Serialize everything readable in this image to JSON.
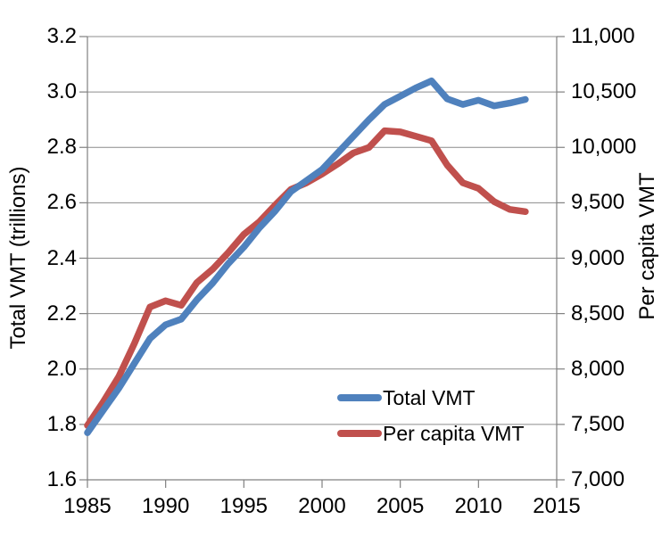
{
  "chart_data": {
    "type": "line",
    "x": [
      1985,
      1986,
      1987,
      1988,
      1989,
      1990,
      1991,
      1992,
      1993,
      1994,
      1995,
      1996,
      1997,
      1998,
      1999,
      2000,
      2001,
      2002,
      2003,
      2004,
      2005,
      2006,
      2007,
      2008,
      2009,
      2010,
      2011,
      2012,
      2013
    ],
    "series": [
      {
        "name": "Total VMT",
        "axis": "left",
        "color": "#4F81BD",
        "values": [
          1.77,
          1.85,
          1.93,
          2.02,
          2.11,
          2.16,
          2.18,
          2.25,
          2.31,
          2.38,
          2.44,
          2.51,
          2.57,
          2.64,
          2.68,
          2.72,
          2.78,
          2.84,
          2.9,
          2.955,
          2.985,
          3.015,
          3.04,
          2.975,
          2.955,
          2.97,
          2.95,
          2.96,
          2.973
        ]
      },
      {
        "name": "Per capita VMT",
        "axis": "right",
        "color": "#C0504D",
        "values": [
          7490,
          7700,
          7930,
          8230,
          8560,
          8615,
          8575,
          8780,
          8900,
          9050,
          9215,
          9330,
          9480,
          9620,
          9680,
          9760,
          9850,
          9950,
          10000,
          10150,
          10140,
          10100,
          10060,
          9840,
          9680,
          9630,
          9510,
          9440,
          9420
        ]
      }
    ],
    "axes": {
      "x": {
        "min": 1985,
        "max": 2015,
        "ticks": [
          "1985",
          "1990",
          "1995",
          "2000",
          "2005",
          "2010",
          "2015"
        ]
      },
      "y_left": {
        "label": "Total VMT (trillions)",
        "min": 1.6,
        "max": 3.2,
        "ticks": [
          "1.6",
          "1.8",
          "2.0",
          "2.2",
          "2.4",
          "2.6",
          "2.8",
          "3.0",
          "3.2"
        ]
      },
      "y_right": {
        "label": "Per capita VMT",
        "min": 7000,
        "max": 11000,
        "ticks": [
          "7,000",
          "7,500",
          "8,000",
          "8,500",
          "9,000",
          "9,500",
          "10,000",
          "10,500",
          "11,000"
        ]
      }
    },
    "legend": {
      "position": "inside-lower-right"
    },
    "grid": true,
    "colors": {
      "grid": "#8C8C8C",
      "axis": "#808080",
      "text": "#000000",
      "background": "#FFFFFF"
    }
  }
}
